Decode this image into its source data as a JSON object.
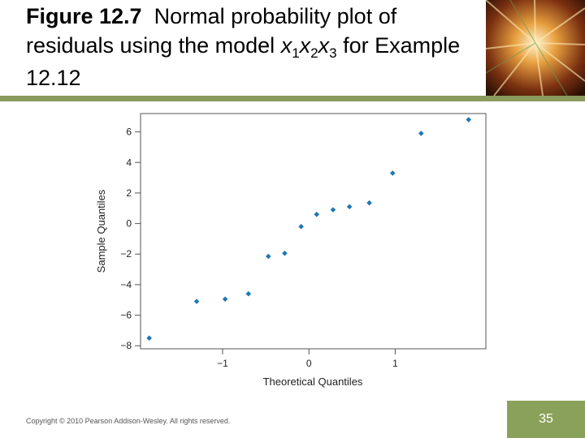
{
  "title": {
    "figure_label": "Figure 12.7",
    "text_before_model": "Normal probability plot of residuals using the model",
    "model_vars": [
      {
        "var": "x",
        "sub": "1"
      },
      {
        "var": "x",
        "sub": "2"
      },
      {
        "var": "x",
        "sub": "3"
      }
    ],
    "text_after_model": "for Example 12.12"
  },
  "footer": {
    "copyright": "Copyright © 2010 Pearson Addison-Wesley. All rights reserved.",
    "page_number": "35"
  },
  "colors": {
    "point": "#1f77b4",
    "accent_green": "#8aa159",
    "band": "#8a9a5b"
  },
  "chart_data": {
    "type": "scatter",
    "title": "",
    "xlabel": "Theoretical Quantiles",
    "ylabel": "Sample Quantiles",
    "xlim": [
      -1.95,
      2.05
    ],
    "ylim": [
      -8.2,
      7.2
    ],
    "x_ticks": [
      -1,
      0,
      1
    ],
    "x_tick_labels": [
      "−1",
      "0",
      "1"
    ],
    "y_ticks": [
      6,
      4,
      2,
      0,
      -2,
      -4,
      -6,
      -8
    ],
    "y_tick_labels": [
      "6",
      "4",
      "2",
      "0",
      "−2",
      "−4",
      "−6",
      "−8"
    ],
    "grid": false,
    "points": [
      {
        "x": -1.85,
        "y": -7.5
      },
      {
        "x": -1.3,
        "y": -5.1
      },
      {
        "x": -0.97,
        "y": -4.95
      },
      {
        "x": -0.7,
        "y": -4.6
      },
      {
        "x": -0.47,
        "y": -2.15
      },
      {
        "x": -0.28,
        "y": -1.95
      },
      {
        "x": -0.09,
        "y": -0.2
      },
      {
        "x": 0.09,
        "y": 0.6
      },
      {
        "x": 0.28,
        "y": 0.9
      },
      {
        "x": 0.47,
        "y": 1.1
      },
      {
        "x": 0.7,
        "y": 1.35
      },
      {
        "x": 0.97,
        "y": 3.3
      },
      {
        "x": 1.3,
        "y": 5.9
      },
      {
        "x": 1.85,
        "y": 6.8
      }
    ]
  }
}
